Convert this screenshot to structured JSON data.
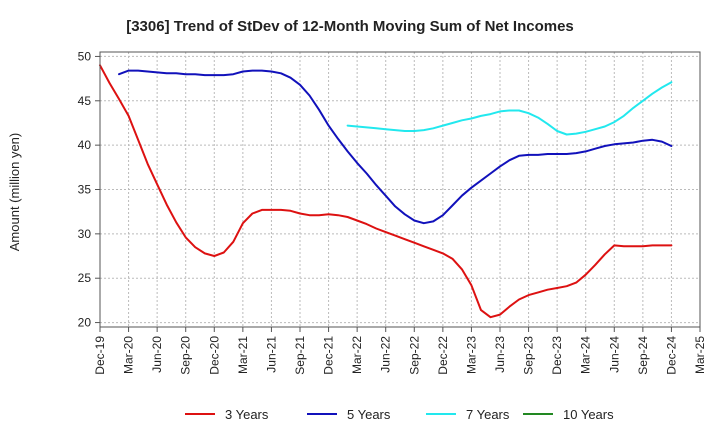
{
  "chart_data": {
    "type": "line",
    "title": "[3306]  Trend of StDev of 12-Month Moving Sum of Net Incomes",
    "xlabel": "",
    "ylabel": "Amount (million yen)",
    "ylim": [
      19.5,
      50.5
    ],
    "yticks": [
      20,
      25,
      30,
      35,
      40,
      45,
      50
    ],
    "xlim": [
      "2019-12",
      "2025-03"
    ],
    "xticks": [
      "Dec-19",
      "Mar-20",
      "Jun-20",
      "Sep-20",
      "Dec-20",
      "Mar-21",
      "Jun-21",
      "Sep-21",
      "Dec-21",
      "Mar-22",
      "Jun-22",
      "Sep-22",
      "Dec-22",
      "Mar-23",
      "Jun-23",
      "Sep-23",
      "Dec-23",
      "Mar-24",
      "Jun-24",
      "Sep-24",
      "Dec-24",
      "Mar-25"
    ],
    "grid": true,
    "legend_position": "bottom",
    "series": [
      {
        "name": "3 Years",
        "color": "#dd1111",
        "x": [
          "2019-12",
          "2020-01",
          "2020-02",
          "2020-03",
          "2020-04",
          "2020-05",
          "2020-06",
          "2020-07",
          "2020-08",
          "2020-09",
          "2020-10",
          "2020-11",
          "2020-12",
          "2021-01",
          "2021-02",
          "2021-03",
          "2021-04",
          "2021-05",
          "2021-06",
          "2021-07",
          "2021-08",
          "2021-09",
          "2021-10",
          "2021-11",
          "2021-12",
          "2022-01",
          "2022-02",
          "2022-03",
          "2022-04",
          "2022-05",
          "2022-06",
          "2022-07",
          "2022-08",
          "2022-09",
          "2022-10",
          "2022-11",
          "2022-12",
          "2023-01",
          "2023-02",
          "2023-03",
          "2023-04",
          "2023-05",
          "2023-06",
          "2023-07",
          "2023-08",
          "2023-09",
          "2023-10",
          "2023-11",
          "2023-12",
          "2024-01",
          "2024-02",
          "2024-03",
          "2024-04",
          "2024-05",
          "2024-06",
          "2024-07",
          "2024-08",
          "2024-09",
          "2024-10",
          "2024-11",
          "2024-12"
        ],
        "values": [
          49.0,
          47.0,
          45.2,
          43.3,
          40.6,
          37.9,
          35.6,
          33.3,
          31.3,
          29.6,
          28.5,
          27.8,
          27.5,
          27.9,
          29.1,
          31.2,
          32.3,
          32.7,
          32.7,
          32.7,
          32.6,
          32.3,
          32.1,
          32.1,
          32.2,
          32.1,
          31.9,
          31.5,
          31.1,
          30.6,
          30.2,
          29.8,
          29.4,
          29.0,
          28.6,
          28.2,
          27.8,
          27.2,
          26.0,
          24.2,
          21.4,
          20.6,
          20.9,
          21.8,
          22.6,
          23.1,
          23.4,
          23.7,
          23.9,
          24.1,
          24.5,
          25.4,
          26.5,
          27.7,
          28.7,
          28.6,
          28.6,
          28.6,
          28.7,
          28.7,
          28.7
        ]
      },
      {
        "name": "5 Years",
        "color": "#1111bb",
        "x": [
          "2020-02",
          "2020-03",
          "2020-04",
          "2020-05",
          "2020-06",
          "2020-07",
          "2020-08",
          "2020-09",
          "2020-10",
          "2020-11",
          "2020-12",
          "2021-01",
          "2021-02",
          "2021-03",
          "2021-04",
          "2021-05",
          "2021-06",
          "2021-07",
          "2021-08",
          "2021-09",
          "2021-10",
          "2021-11",
          "2021-12",
          "2022-01",
          "2022-02",
          "2022-03",
          "2022-04",
          "2022-05",
          "2022-06",
          "2022-07",
          "2022-08",
          "2022-09",
          "2022-10",
          "2022-11",
          "2022-12",
          "2023-01",
          "2023-02",
          "2023-03",
          "2023-04",
          "2023-05",
          "2023-06",
          "2023-07",
          "2023-08",
          "2023-09",
          "2023-10",
          "2023-11",
          "2023-12",
          "2024-01",
          "2024-02",
          "2024-03",
          "2024-04",
          "2024-05",
          "2024-06",
          "2024-07",
          "2024-08",
          "2024-09",
          "2024-10",
          "2024-11",
          "2024-12"
        ],
        "values": [
          48.0,
          48.4,
          48.4,
          48.3,
          48.2,
          48.1,
          48.1,
          48.0,
          48.0,
          47.9,
          47.9,
          47.9,
          48.0,
          48.3,
          48.4,
          48.4,
          48.3,
          48.1,
          47.6,
          46.8,
          45.6,
          44.0,
          42.2,
          40.7,
          39.3,
          38.0,
          36.8,
          35.5,
          34.3,
          33.1,
          32.2,
          31.5,
          31.2,
          31.4,
          32.1,
          33.2,
          34.3,
          35.2,
          36.0,
          36.8,
          37.6,
          38.3,
          38.8,
          38.9,
          38.9,
          39.0,
          39.0,
          39.0,
          39.1,
          39.3,
          39.6,
          39.9,
          40.1,
          40.2,
          40.3,
          40.5,
          40.6,
          40.4,
          39.9
        ]
      },
      {
        "name": "7 Years",
        "color": "#22e8ee",
        "x": [
          "2022-02",
          "2022-03",
          "2022-04",
          "2022-05",
          "2022-06",
          "2022-07",
          "2022-08",
          "2022-09",
          "2022-10",
          "2022-11",
          "2022-12",
          "2023-01",
          "2023-02",
          "2023-03",
          "2023-04",
          "2023-05",
          "2023-06",
          "2023-07",
          "2023-08",
          "2023-09",
          "2023-10",
          "2023-11",
          "2023-12",
          "2024-01",
          "2024-02",
          "2024-03",
          "2024-04",
          "2024-05",
          "2024-06",
          "2024-07",
          "2024-08",
          "2024-09",
          "2024-10",
          "2024-11",
          "2024-12"
        ],
        "values": [
          42.2,
          42.1,
          42.0,
          41.9,
          41.8,
          41.7,
          41.6,
          41.6,
          41.7,
          41.9,
          42.2,
          42.5,
          42.8,
          43.0,
          43.3,
          43.5,
          43.8,
          43.9,
          43.9,
          43.6,
          43.1,
          42.4,
          41.6,
          41.2,
          41.3,
          41.5,
          41.8,
          42.1,
          42.6,
          43.3,
          44.2,
          45.0,
          45.8,
          46.5,
          47.1
        ]
      },
      {
        "name": "10 Years",
        "color": "#228822",
        "x": [],
        "values": []
      }
    ]
  }
}
